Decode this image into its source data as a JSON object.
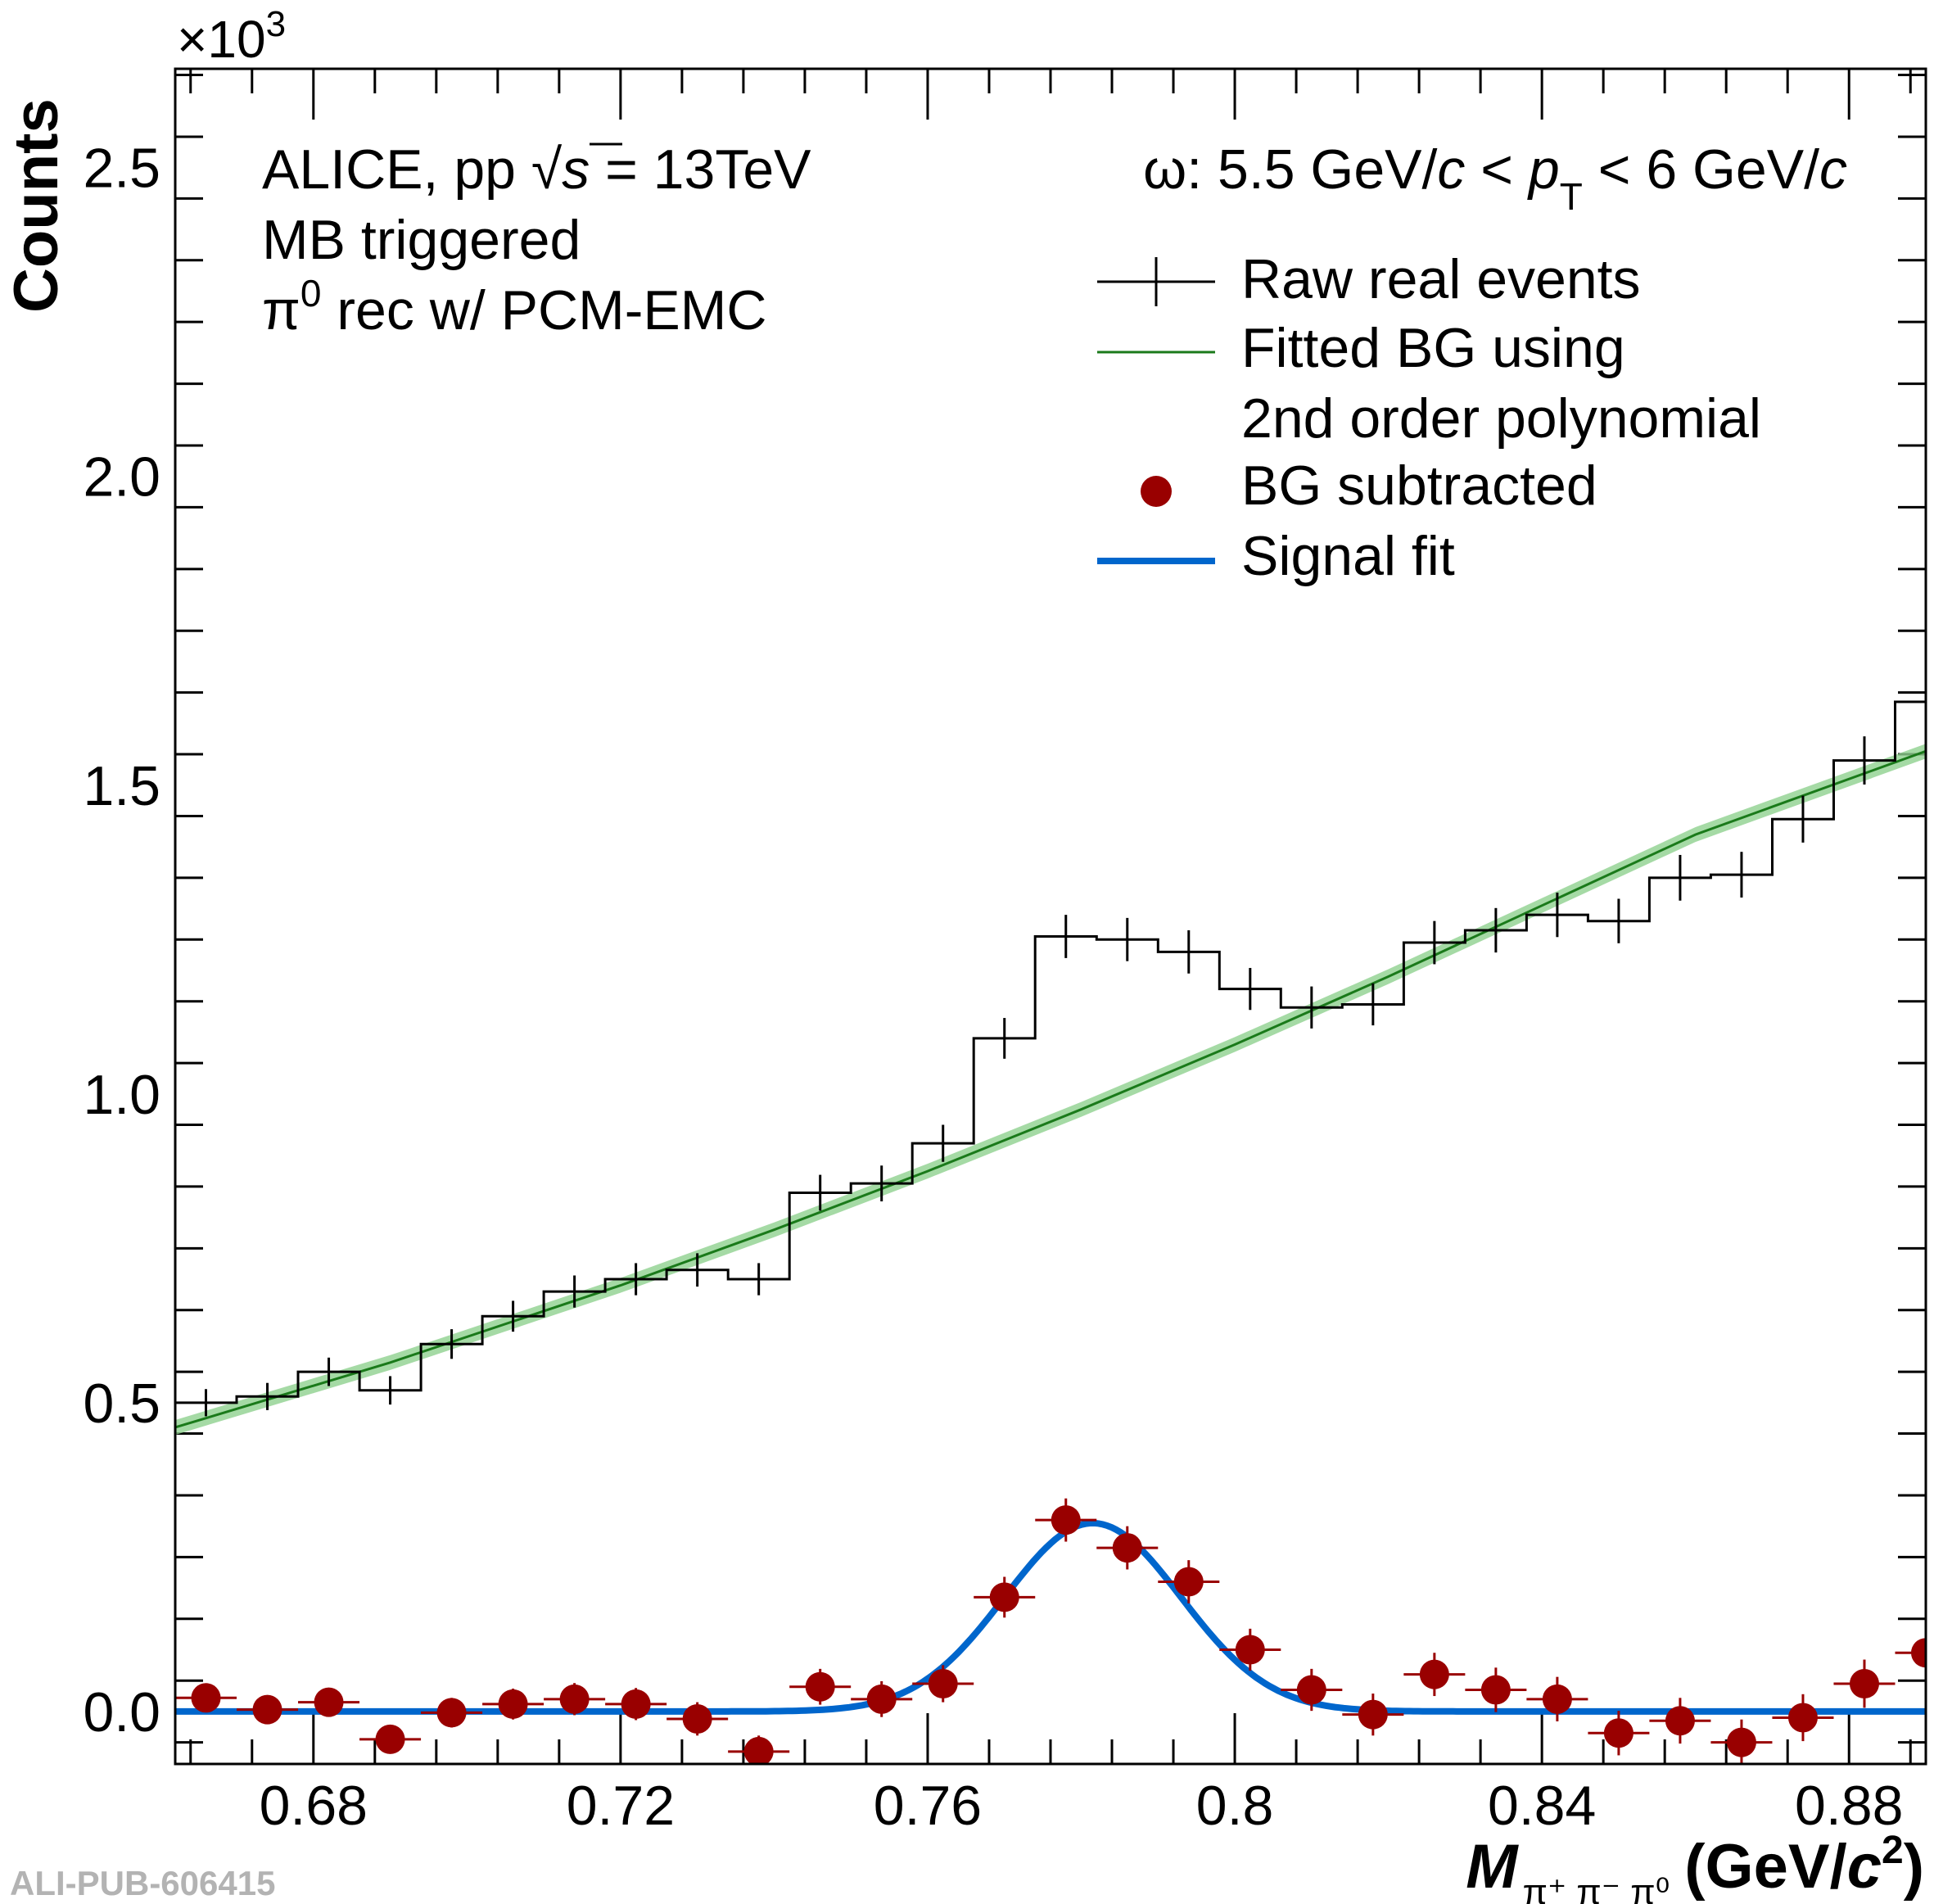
{
  "footer": {
    "id": "ALI-PUB-606415"
  },
  "chart_data": {
    "type": "scatter",
    "title": "",
    "ylabel": "Counts",
    "y_multiplier": "×10",
    "y_multiplier_exp": "3",
    "xlabel": {
      "main": "M",
      "sub": "π⁺ π⁻ π⁰",
      "unit_pre": "(GeV/",
      "unit_c": "c",
      "unit_exp": "2",
      "unit_post": ")"
    },
    "xlim": [
      0.662,
      0.89
    ],
    "ylim": [
      -0.085,
      2.66
    ],
    "x_ticks": [
      0.68,
      0.72,
      0.76,
      0.8,
      0.84,
      0.88
    ],
    "x_tick_labels": [
      "0.68",
      "0.72",
      "0.76",
      "0.8",
      "0.84",
      "0.88"
    ],
    "y_ticks": [
      0.0,
      0.5,
      1.0,
      1.5,
      2.0,
      2.5
    ],
    "y_tick_labels": [
      "0.0",
      "0.5",
      "1.0",
      "1.5",
      "2.0",
      "2.5"
    ],
    "grid": false,
    "annotations": {
      "experiment": "ALICE",
      "system": ", pp ",
      "sqrt_s_sym": "√",
      "sqrt_s_var": "s",
      "energy": " = 13TeV",
      "trigger": "MB triggered",
      "pi0_sym": "π",
      "pi0_sup": "0",
      "pi0_rest": " rec w/ PCM-EMC",
      "kin_omega": "ω: 5.5 GeV/",
      "kin_c1": "c",
      "kin_lt1": " < ",
      "kin_p": "p",
      "kin_T": "T",
      "kin_lt2": " < 6 GeV/",
      "kin_c2": "c"
    },
    "legend_position": "top-right",
    "legend": [
      {
        "label": "Raw real events",
        "style": "cross-line"
      },
      {
        "label": "Fitted BG using",
        "label2": "2nd order polynomial",
        "style": "green-line"
      },
      {
        "label": "BG subtracted",
        "style": "red-marker"
      },
      {
        "label": "Signal fit",
        "style": "blue-line"
      }
    ],
    "colors": {
      "raw": "#000000",
      "background_fit": "#1a7a1a",
      "background_band": "#8fd18f",
      "subtracted": "#990000",
      "signal_fit": "#0066cc"
    },
    "bin_width": 0.008,
    "series": [
      {
        "name": "Raw real events",
        "x": [
          0.666,
          0.674,
          0.682,
          0.69,
          0.698,
          0.706,
          0.714,
          0.722,
          0.73,
          0.738,
          0.746,
          0.754,
          0.762,
          0.77,
          0.778,
          0.786,
          0.794,
          0.802,
          0.81,
          0.818,
          0.826,
          0.834,
          0.842,
          0.85,
          0.858,
          0.866,
          0.874,
          0.882,
          0.89
        ],
        "y": [
          0.5,
          0.51,
          0.55,
          0.52,
          0.595,
          0.64,
          0.68,
          0.7,
          0.715,
          0.7,
          0.84,
          0.855,
          0.92,
          1.09,
          1.255,
          1.25,
          1.23,
          1.17,
          1.14,
          1.145,
          1.245,
          1.265,
          1.29,
          1.28,
          1.35,
          1.355,
          1.445,
          1.54,
          1.635
        ],
        "yerr": [
          0.022,
          0.022,
          0.023,
          0.023,
          0.024,
          0.025,
          0.026,
          0.026,
          0.027,
          0.026,
          0.029,
          0.029,
          0.03,
          0.033,
          0.035,
          0.035,
          0.035,
          0.034,
          0.034,
          0.034,
          0.035,
          0.036,
          0.036,
          0.036,
          0.037,
          0.037,
          0.038,
          0.039,
          0.04
        ]
      },
      {
        "name": "BG subtracted",
        "x": [
          0.666,
          0.674,
          0.682,
          0.69,
          0.698,
          0.706,
          0.714,
          0.722,
          0.73,
          0.738,
          0.746,
          0.754,
          0.762,
          0.77,
          0.778,
          0.786,
          0.794,
          0.802,
          0.81,
          0.818,
          0.826,
          0.834,
          0.842,
          0.85,
          0.858,
          0.866,
          0.874,
          0.882,
          0.89
        ],
        "y": [
          0.022,
          0.003,
          0.015,
          -0.045,
          -0.002,
          0.012,
          0.02,
          0.012,
          -0.012,
          -0.065,
          0.04,
          0.02,
          0.045,
          0.185,
          0.31,
          0.265,
          0.21,
          0.1,
          0.035,
          -0.005,
          0.06,
          0.035,
          0.02,
          -0.035,
          -0.015,
          -0.05,
          -0.01,
          0.045,
          0.095
        ],
        "yerr": [
          0.022,
          0.022,
          0.023,
          0.023,
          0.024,
          0.025,
          0.026,
          0.026,
          0.027,
          0.026,
          0.029,
          0.029,
          0.03,
          0.033,
          0.035,
          0.035,
          0.035,
          0.034,
          0.034,
          0.034,
          0.035,
          0.036,
          0.036,
          0.036,
          0.037,
          0.037,
          0.038,
          0.039,
          0.04
        ]
      },
      {
        "name": "Fitted BG using 2nd order polynomial",
        "type": "line",
        "x": [
          0.662,
          0.69,
          0.72,
          0.74,
          0.76,
          0.78,
          0.8,
          0.82,
          0.84,
          0.86,
          0.89
        ],
        "y": [
          0.46,
          0.565,
          0.69,
          0.78,
          0.875,
          0.975,
          1.08,
          1.19,
          1.305,
          1.42,
          1.555
        ]
      },
      {
        "name": "Signal fit",
        "type": "gaussian",
        "mean": 0.7815,
        "sigma": 0.0115,
        "amplitude": 0.305,
        "baseline": 0.0
      }
    ]
  }
}
